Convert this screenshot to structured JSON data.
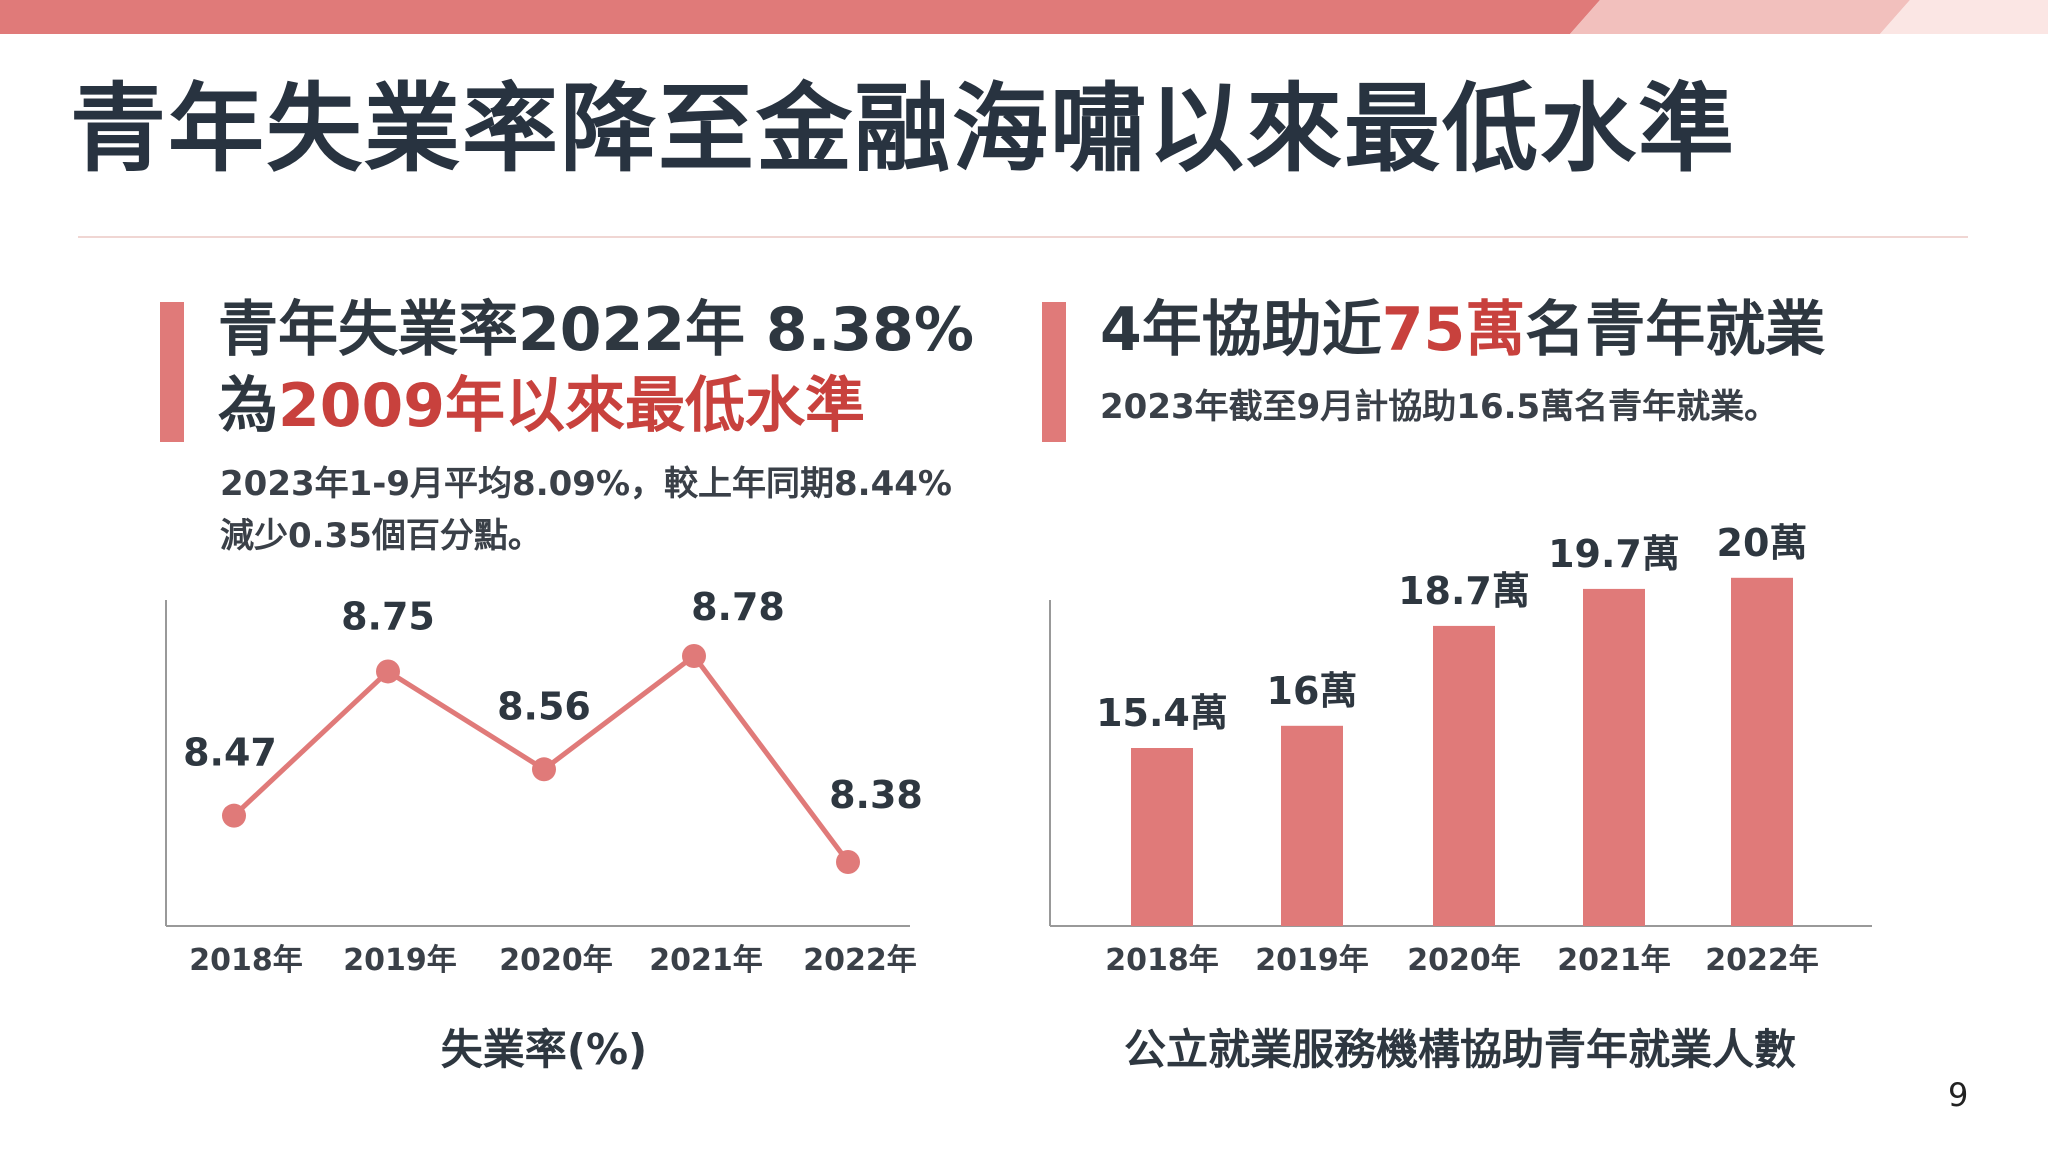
{
  "slide": {
    "title": "青年失業率降至金融海嘯以來最低水準",
    "page_number": "9"
  },
  "left_panel": {
    "headline_part1": "青年失業率2022年 8.38%",
    "headline_part2_prefix": "為",
    "headline_part2_highlight": "2009年以來最低水準",
    "subtext_line1": "2023年1-9月平均8.09%，較上年同期8.44%",
    "subtext_line2": "減少0.35個百分點。",
    "caption": "失業率(%)"
  },
  "right_panel": {
    "headline_prefix": "4年協助近",
    "headline_highlight": "75萬",
    "headline_suffix": "名青年就業",
    "subtext": "2023年截至9月計協助16.5萬名青年就業。",
    "caption": "公立就業服務機構協助青年就業人數"
  },
  "colors": {
    "accent": "#e07a79",
    "highlight": "#c8413d",
    "title": "#283340",
    "axis": "#999999"
  },
  "chart_data": [
    {
      "type": "line",
      "categories": [
        "2018年",
        "2019年",
        "2020年",
        "2021年",
        "2022年"
      ],
      "values": [
        8.47,
        8.75,
        8.56,
        8.78,
        8.38
      ],
      "value_labels": [
        "8.47",
        "8.75",
        "8.56",
        "8.78",
        "8.38"
      ],
      "title": "",
      "xlabel": "失業率(%)",
      "ylabel": "",
      "ylim": [
        8.0,
        9.0
      ],
      "grid": false
    },
    {
      "type": "bar",
      "categories": [
        "2018年",
        "2019年",
        "2020年",
        "2021年",
        "2022年"
      ],
      "values": [
        15.4,
        16,
        18.7,
        19.7,
        20
      ],
      "value_labels": [
        "15.4萬",
        "16萬",
        "18.7萬",
        "19.7萬",
        "20萬"
      ],
      "title": "",
      "xlabel": "公立就業服務機構協助青年就業人數",
      "ylabel": "",
      "ylim": [
        0,
        20
      ],
      "grid": false
    }
  ]
}
